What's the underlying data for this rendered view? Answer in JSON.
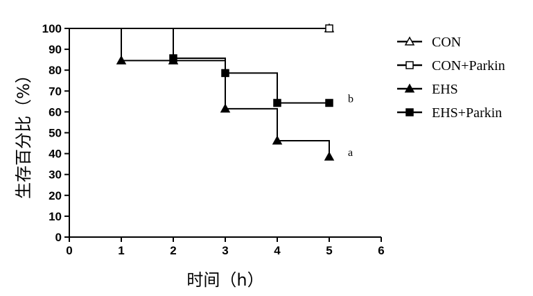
{
  "chart_data": {
    "type": "line",
    "subtype": "step",
    "title": "",
    "xlabel": "时间（h）",
    "ylabel": "生存百分比（%）",
    "xlim": [
      0,
      6
    ],
    "ylim": [
      0,
      100
    ],
    "xticks": [
      0,
      1,
      2,
      3,
      4,
      5,
      6
    ],
    "yticks": [
      0,
      10,
      20,
      30,
      40,
      50,
      60,
      70,
      80,
      90,
      100
    ],
    "grid": false,
    "legend_position": "right",
    "series": [
      {
        "name": "CON",
        "marker": "open-triangle",
        "x": [
          0,
          5
        ],
        "y": [
          100,
          100
        ],
        "markers_x": [
          5
        ],
        "markers_y": [
          100
        ]
      },
      {
        "name": "CON+Parkin",
        "marker": "open-square",
        "x": [
          0,
          5
        ],
        "y": [
          100,
          100
        ],
        "markers_x": [
          5
        ],
        "markers_y": [
          100
        ]
      },
      {
        "name": "EHS",
        "marker": "filled-triangle",
        "x": [
          0,
          1,
          2,
          3,
          4,
          5
        ],
        "y": [
          100,
          84.6,
          84.6,
          61.5,
          46.2,
          38.5
        ],
        "markers_x": [
          1,
          2,
          3,
          4,
          5
        ],
        "markers_y": [
          84.6,
          84.6,
          61.5,
          46.2,
          38.5
        ]
      },
      {
        "name": "EHS+Parkin",
        "marker": "filled-square",
        "x": [
          0,
          2,
          3,
          4,
          5
        ],
        "y": [
          100,
          85.7,
          78.6,
          64.3,
          64.3
        ],
        "markers_x": [
          2,
          3,
          4,
          5
        ],
        "markers_y": [
          85.7,
          78.6,
          64.3,
          64.3
        ]
      }
    ],
    "annotations": [
      {
        "text": "b",
        "x": 5,
        "y": 64.3
      },
      {
        "text": "a",
        "x": 5,
        "y": 38.5
      }
    ]
  }
}
